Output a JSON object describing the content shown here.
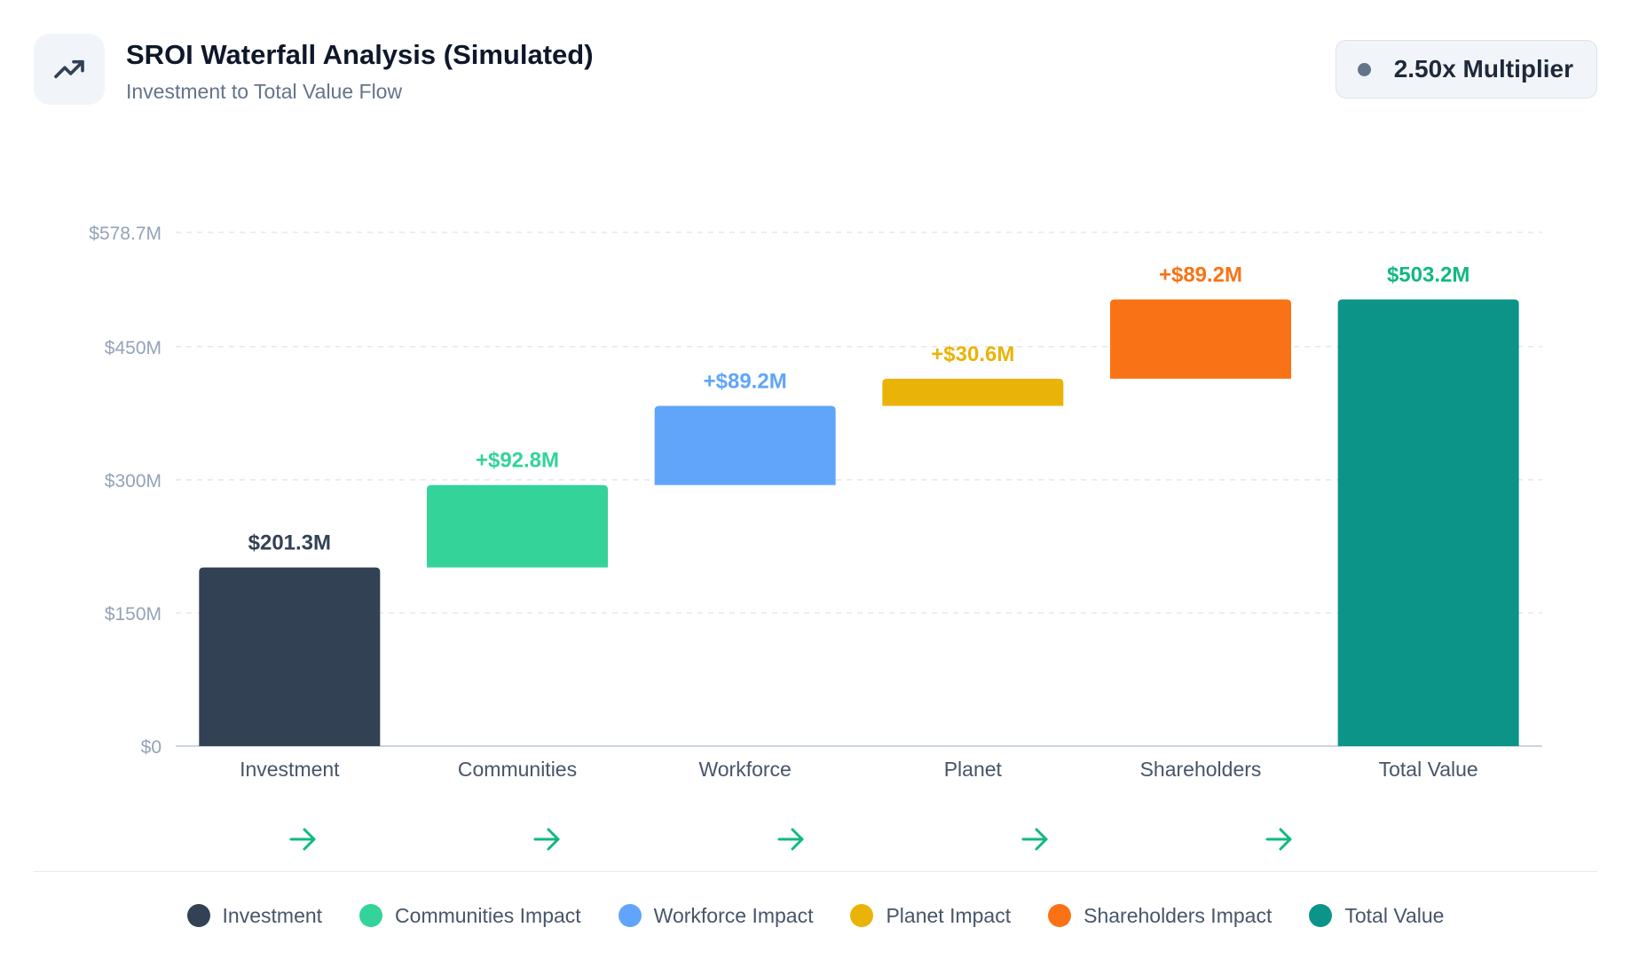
{
  "header": {
    "title": "SROI Waterfall Analysis (Simulated)",
    "subtitle": "Investment to Total Value Flow",
    "icon": "trending-up-icon",
    "badge": "2.50x Multiplier"
  },
  "chart_data": {
    "type": "bar",
    "subtype": "waterfall",
    "title": "",
    "xlabel": "",
    "ylabel": "",
    "ylim": [
      0,
      578.7
    ],
    "y_ticks": [
      {
        "value": 0,
        "label": "$0"
      },
      {
        "value": 150,
        "label": "$150M"
      },
      {
        "value": 300,
        "label": "$300M"
      },
      {
        "value": 450,
        "label": "$450M"
      },
      {
        "value": 578.7,
        "label": "$578.7M"
      }
    ],
    "grid": true,
    "legend_position": "bottom",
    "categories": [
      "Investment",
      "Communities",
      "Workforce",
      "Planet",
      "Shareholders",
      "Total Value"
    ],
    "bars": [
      {
        "category": "Investment",
        "start": 0,
        "end": 201.3,
        "value": 201.3,
        "label": "$201.3M",
        "color": "#334155"
      },
      {
        "category": "Communities",
        "start": 201.3,
        "end": 294.1,
        "value": 92.8,
        "label": "+$92.8M",
        "color": "#34d399"
      },
      {
        "category": "Workforce",
        "start": 294.1,
        "end": 383.3,
        "value": 89.2,
        "label": "+$89.2M",
        "color": "#60a5fa"
      },
      {
        "category": "Planet",
        "start": 383.3,
        "end": 413.9,
        "value": 30.6,
        "label": "+$30.6M",
        "color": "#eab308"
      },
      {
        "category": "Shareholders",
        "start": 413.9,
        "end": 503.2,
        "value": 89.2,
        "label": "+$89.2M",
        "color": "#f97316"
      },
      {
        "category": "Total Value",
        "start": 0,
        "end": 503.2,
        "value": 503.2,
        "label": "$503.2M",
        "color": "#0d9488"
      }
    ],
    "label_colors": [
      "#334155",
      "#34d399",
      "#60a5fa",
      "#eab308",
      "#f97316",
      "#10b981"
    ],
    "flow_arrow_color": "#10b981",
    "flow_arrow_count": 5
  },
  "legend": [
    {
      "label": "Investment",
      "color": "#334155"
    },
    {
      "label": "Communities Impact",
      "color": "#34d399"
    },
    {
      "label": "Workforce Impact",
      "color": "#60a5fa"
    },
    {
      "label": "Planet Impact",
      "color": "#eab308"
    },
    {
      "label": "Shareholders Impact",
      "color": "#f97316"
    },
    {
      "label": "Total Value",
      "color": "#0d9488"
    }
  ]
}
